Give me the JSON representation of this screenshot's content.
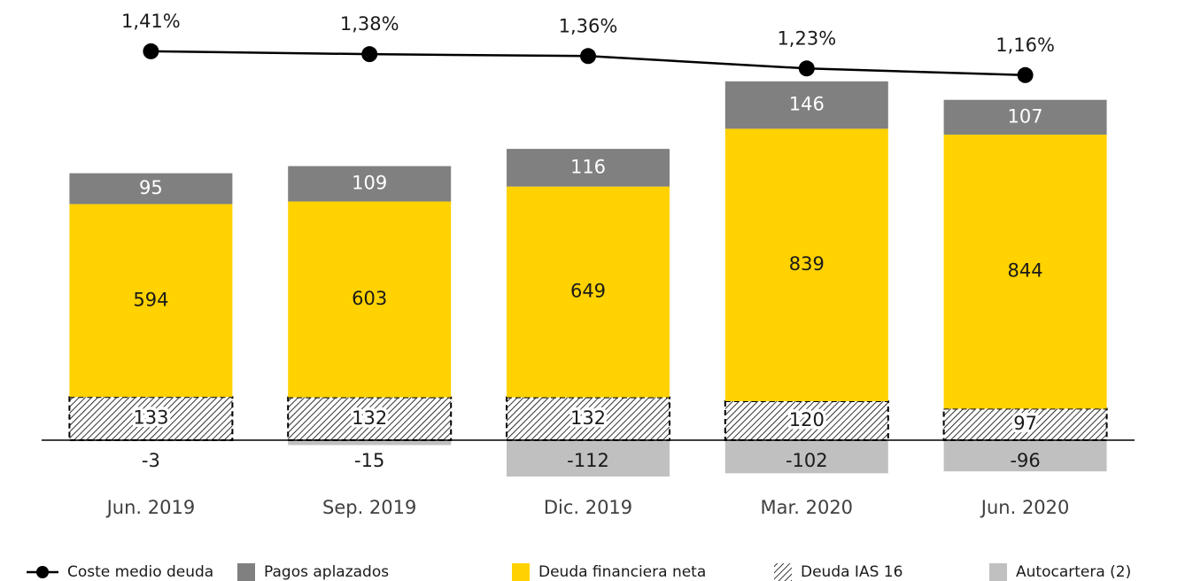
{
  "chart_data": {
    "type": "bar",
    "stacked": true,
    "categories": [
      "Jun. 2019",
      "Sep. 2019",
      "Dic. 2019",
      "Mar. 2020",
      "Jun. 2020"
    ],
    "ylim": [
      -150,
      1350
    ],
    "y2lim": [
      1.0,
      1.6
    ],
    "legend": "bottom",
    "series": [
      {
        "name": "Coste medio deuda",
        "type": "line",
        "axis": "y2",
        "color": "#000000",
        "values": [
          1.41,
          1.38,
          1.36,
          1.23,
          1.16
        ],
        "value_labels": [
          "1,41%",
          "1,38%",
          "1,36%",
          "1,23%",
          "1,16%"
        ]
      },
      {
        "name": "Pagos aplazados",
        "color": "#808080",
        "label_color": "#ffffff",
        "values": [
          95,
          109,
          116,
          146,
          107
        ]
      },
      {
        "name": "Deuda financiera neta",
        "color": "#ffd200",
        "values": [
          594,
          603,
          649,
          839,
          844
        ]
      },
      {
        "name": "Deuda IAS 16",
        "color": "#000000",
        "hatch": true,
        "values": [
          133,
          132,
          132,
          120,
          97
        ]
      },
      {
        "name": "Autocartera (2)",
        "color": "#c0c0c0",
        "values": [
          -3,
          -15,
          -112,
          -102,
          -96
        ]
      }
    ]
  }
}
